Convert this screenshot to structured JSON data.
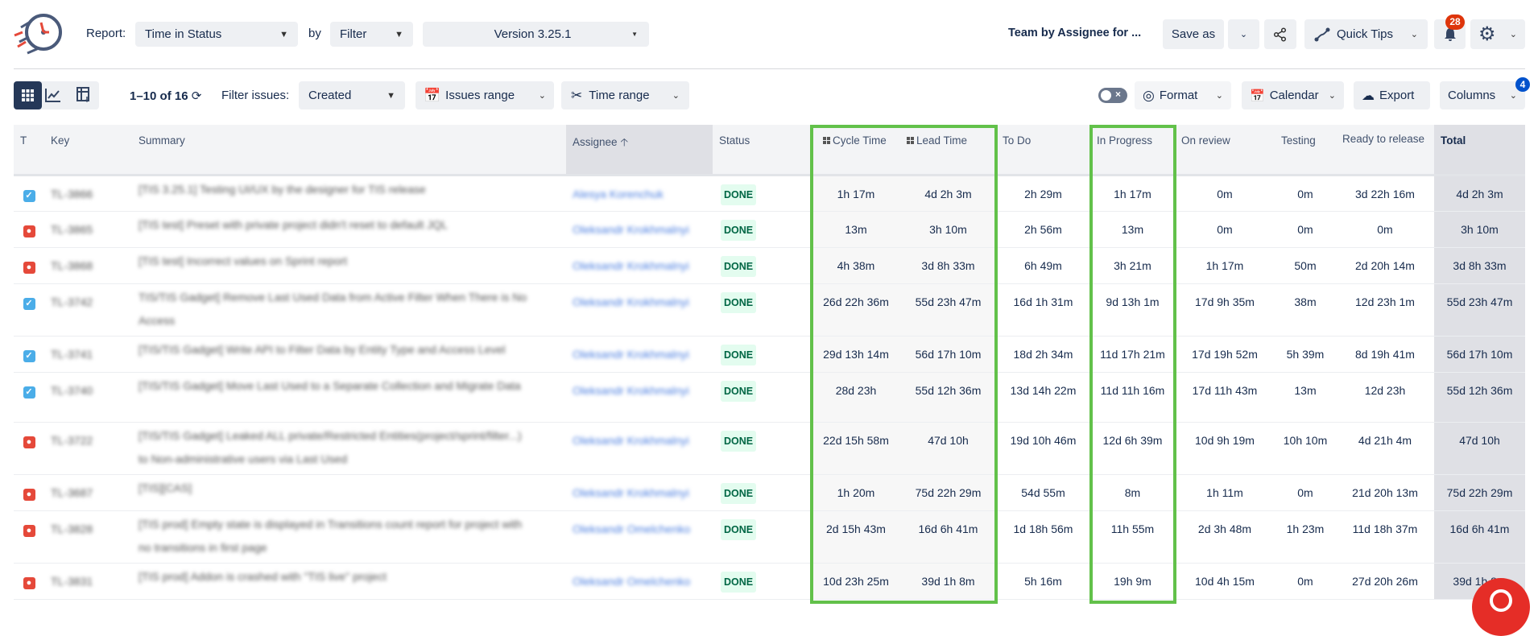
{
  "header": {
    "report_label": "Report:",
    "report_value": "Time in Status",
    "by_label": "by",
    "by_value": "Filter",
    "version_value": "Version 3.25.1",
    "saved_report": "Team by Assignee for ...",
    "save_as": "Save as",
    "quick_tips": "Quick Tips",
    "notifications_count": "28"
  },
  "toolbar": {
    "pagination": "1–10 of 16",
    "filter_label": "Filter issues:",
    "filter_value": "Created",
    "issues_range": "Issues range",
    "time_range": "Time range",
    "format": "Format",
    "calendar": "Calendar",
    "export": "Export",
    "columns": "Columns",
    "columns_badge": "4"
  },
  "colors": {
    "highlight": "#62c14a",
    "story": "#4bade8",
    "bug": "#e5493a",
    "badge": "#de350b",
    "columns_badge": "#0052cc"
  },
  "table": {
    "headers": [
      "T",
      "Key",
      "Summary",
      "Assignee",
      "Status",
      "Cycle Time",
      "Lead Time",
      "To Do",
      "In Progress",
      "On review",
      "Testing",
      "Ready to release",
      "Total"
    ],
    "rows": [
      {
        "type": "story",
        "key": "TL-3866",
        "summary": "[TIS 3.25.1] Testing UI/UX by the designer for TIS release",
        "assignee": "Alesya Korenchuk",
        "status": "DONE",
        "values": [
          "1h 17m",
          "4d 2h 3m",
          "2h 29m",
          "1h 17m",
          "0m",
          "0m",
          "3d 22h 16m",
          "4d 2h 3m"
        ]
      },
      {
        "type": "bug",
        "key": "TL-3865",
        "summary": "[TIS test] Preset with private project didn't reset to default JQL",
        "assignee": "Oleksandr Krokhmalnyi",
        "status": "DONE",
        "values": [
          "13m",
          "3h 10m",
          "2h 56m",
          "13m",
          "0m",
          "0m",
          "0m",
          "3h 10m"
        ]
      },
      {
        "type": "bug",
        "key": "TL-3868",
        "summary": "[TIS test] Incorrect values on Sprint report",
        "assignee": "Oleksandr Krokhmalnyi",
        "status": "DONE",
        "values": [
          "4h 38m",
          "3d 8h 33m",
          "6h 49m",
          "3h 21m",
          "1h 17m",
          "50m",
          "2d 20h 14m",
          "3d 8h 33m"
        ]
      },
      {
        "type": "story",
        "key": "TL-3742",
        "summary": "TIS/TIS Gadget] Remove Last Used Data from Active Filter When There is No Access",
        "assignee": "Oleksandr Krokhmalnyi",
        "status": "DONE",
        "values": [
          "26d 22h 36m",
          "55d 23h 47m",
          "16d 1h 31m",
          "9d 13h 1m",
          "17d 9h 35m",
          "38m",
          "12d 23h 1m",
          "55d 23h 47m"
        ]
      },
      {
        "type": "story",
        "key": "TL-3741",
        "summary": "[TIS/TIS Gadget] Write API to Filter Data by Entity Type and Access Level",
        "assignee": "Oleksandr Krokhmalnyi",
        "status": "DONE",
        "values": [
          "29d 13h 14m",
          "56d 17h 10m",
          "18d 2h 34m",
          "11d 17h 21m",
          "17d 19h 52m",
          "5h 39m",
          "8d 19h 41m",
          "56d 17h 10m"
        ]
      },
      {
        "type": "story",
        "key": "TL-3740",
        "summary": "[TIS/TIS Gadget] Move Last Used to a Separate Collection and Migrate Data",
        "assignee": "Oleksandr Krokhmalnyi",
        "status": "DONE",
        "values": [
          "28d 23h",
          "55d 12h 36m",
          "13d 14h 22m",
          "11d 11h 16m",
          "17d 11h 43m",
          "13m",
          "12d 23h",
          "55d 12h 36m"
        ]
      },
      {
        "type": "bug",
        "key": "TL-3722",
        "summary": "[TIS/TIS Gadget] Leaked ALL private/Restricted Entities(project/sprint/filter...) to Non-administrative users via Last Used",
        "assignee": "Oleksandr Krokhmalnyi",
        "status": "DONE",
        "values": [
          "22d 15h 58m",
          "47d 10h",
          "19d 10h 46m",
          "12d 6h 39m",
          "10d 9h 19m",
          "10h 10m",
          "4d 21h 4m",
          "47d 10h"
        ]
      },
      {
        "type": "bug",
        "key": "TL-3687",
        "summary": "[TIS][CAS]",
        "assignee": "Oleksandr Krokhmalnyi",
        "status": "DONE",
        "values": [
          "1h 20m",
          "75d 22h 29m",
          "54d 55m",
          "8m",
          "1h 11m",
          "0m",
          "21d 20h 13m",
          "75d 22h 29m"
        ]
      },
      {
        "type": "bug",
        "key": "TL-3828",
        "summary": "[TIS prod] Empty state is displayed in Transitions count report for project with no transitions in first page",
        "assignee": "Oleksandr Omelchenko",
        "status": "DONE",
        "values": [
          "2d 15h 43m",
          "16d 6h 41m",
          "1d 18h 56m",
          "11h 55m",
          "2d 3h 48m",
          "1h 23m",
          "11d 18h 37m",
          "16d 6h 41m"
        ]
      },
      {
        "type": "bug",
        "key": "TL-3831",
        "summary": "[TIS prod] Addon is crashed with \"TIS live\" project",
        "assignee": "Oleksandr Omelchenko",
        "status": "DONE",
        "values": [
          "10d 23h 25m",
          "39d 1h 8m",
          "5h 16m",
          "19h 9m",
          "10d 4h 15m",
          "0m",
          "27d 20h 26m",
          "39d 1h 8m"
        ]
      }
    ]
  }
}
